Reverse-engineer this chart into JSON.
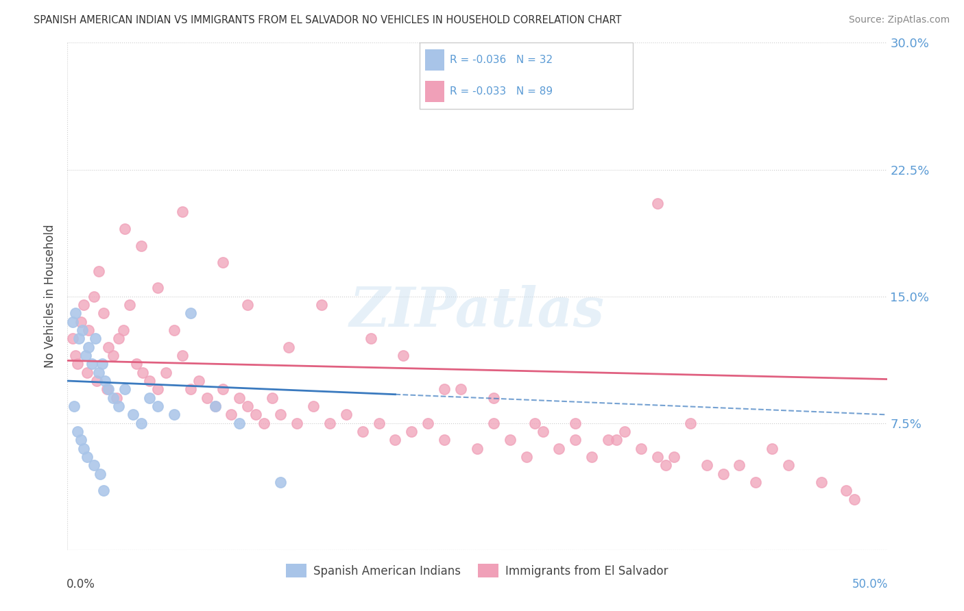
{
  "title": "SPANISH AMERICAN INDIAN VS IMMIGRANTS FROM EL SALVADOR NO VEHICLES IN HOUSEHOLD CORRELATION CHART",
  "source": "Source: ZipAtlas.com",
  "ylabel": "No Vehicles in Household",
  "xlim": [
    0.0,
    50.0
  ],
  "ylim": [
    0.0,
    30.0
  ],
  "ytick_vals": [
    0.0,
    7.5,
    15.0,
    22.5,
    30.0
  ],
  "series1_name": "Spanish American Indians",
  "series1_color": "#a8c4e8",
  "series1_line_color": "#3a7abf",
  "series1_R": -0.036,
  "series1_N": 32,
  "series2_name": "Immigrants from El Salvador",
  "series2_color": "#f0a0b8",
  "series2_line_color": "#e06080",
  "series2_R": -0.033,
  "series2_N": 89,
  "legend_color": "#5b9bd5",
  "watermark": "ZIPatlas",
  "background_color": "#ffffff",
  "series1_x": [
    0.3,
    0.5,
    0.7,
    0.9,
    1.1,
    1.3,
    1.5,
    1.7,
    1.9,
    2.1,
    2.3,
    2.5,
    2.8,
    3.1,
    3.5,
    4.0,
    4.5,
    5.0,
    5.5,
    6.5,
    7.5,
    9.0,
    10.5,
    0.4,
    0.6,
    0.8,
    1.0,
    1.2,
    1.6,
    2.0,
    2.2,
    13.0
  ],
  "series1_y": [
    13.5,
    14.0,
    12.5,
    13.0,
    11.5,
    12.0,
    11.0,
    12.5,
    10.5,
    11.0,
    10.0,
    9.5,
    9.0,
    8.5,
    9.5,
    8.0,
    7.5,
    9.0,
    8.5,
    8.0,
    14.0,
    8.5,
    7.5,
    8.5,
    7.0,
    6.5,
    6.0,
    5.5,
    5.0,
    4.5,
    3.5,
    4.0
  ],
  "series2_x": [
    0.3,
    0.5,
    0.8,
    1.0,
    1.3,
    1.6,
    1.9,
    2.2,
    2.5,
    2.8,
    3.1,
    3.4,
    3.8,
    4.2,
    4.6,
    5.0,
    5.5,
    6.0,
    6.5,
    7.0,
    7.5,
    8.0,
    8.5,
    9.0,
    9.5,
    10.0,
    10.5,
    11.0,
    11.5,
    12.0,
    12.5,
    13.0,
    14.0,
    15.0,
    16.0,
    17.0,
    18.0,
    19.0,
    20.0,
    21.0,
    22.0,
    23.0,
    24.0,
    25.0,
    26.0,
    27.0,
    28.0,
    29.0,
    30.0,
    31.0,
    32.0,
    33.0,
    34.0,
    35.0,
    36.0,
    37.0,
    38.0,
    39.0,
    40.0,
    41.0,
    42.0,
    43.0,
    44.0,
    46.0,
    47.5,
    36.0,
    48.0,
    3.5,
    4.5,
    5.5,
    7.0,
    9.5,
    11.0,
    13.5,
    15.5,
    18.5,
    20.5,
    23.0,
    26.0,
    28.5,
    31.0,
    33.5,
    36.5,
    0.6,
    1.2,
    1.8,
    2.4,
    3.0
  ],
  "series2_y": [
    12.5,
    11.5,
    13.5,
    14.5,
    13.0,
    15.0,
    16.5,
    14.0,
    12.0,
    11.5,
    12.5,
    13.0,
    14.5,
    11.0,
    10.5,
    10.0,
    9.5,
    10.5,
    13.0,
    11.5,
    9.5,
    10.0,
    9.0,
    8.5,
    9.5,
    8.0,
    9.0,
    8.5,
    8.0,
    7.5,
    9.0,
    8.0,
    7.5,
    8.5,
    7.5,
    8.0,
    7.0,
    7.5,
    6.5,
    7.0,
    7.5,
    6.5,
    9.5,
    6.0,
    7.5,
    6.5,
    5.5,
    7.0,
    6.0,
    7.5,
    5.5,
    6.5,
    7.0,
    6.0,
    5.5,
    5.5,
    7.5,
    5.0,
    4.5,
    5.0,
    4.0,
    6.0,
    5.0,
    4.0,
    3.5,
    20.5,
    3.0,
    19.0,
    18.0,
    15.5,
    20.0,
    17.0,
    14.5,
    12.0,
    14.5,
    12.5,
    11.5,
    9.5,
    9.0,
    7.5,
    6.5,
    6.5,
    5.0,
    11.0,
    10.5,
    10.0,
    9.5,
    9.0
  ],
  "pink_line_x0": 0.0,
  "pink_line_y0": 11.2,
  "pink_line_x1": 50.0,
  "pink_line_y1": 10.1,
  "blue_solid_x0": 0.0,
  "blue_solid_y0": 10.0,
  "blue_solid_x1": 20.0,
  "blue_solid_y1": 9.2,
  "blue_dash_x0": 20.0,
  "blue_dash_y0": 9.2,
  "blue_dash_x1": 50.0,
  "blue_dash_y1": 8.0
}
